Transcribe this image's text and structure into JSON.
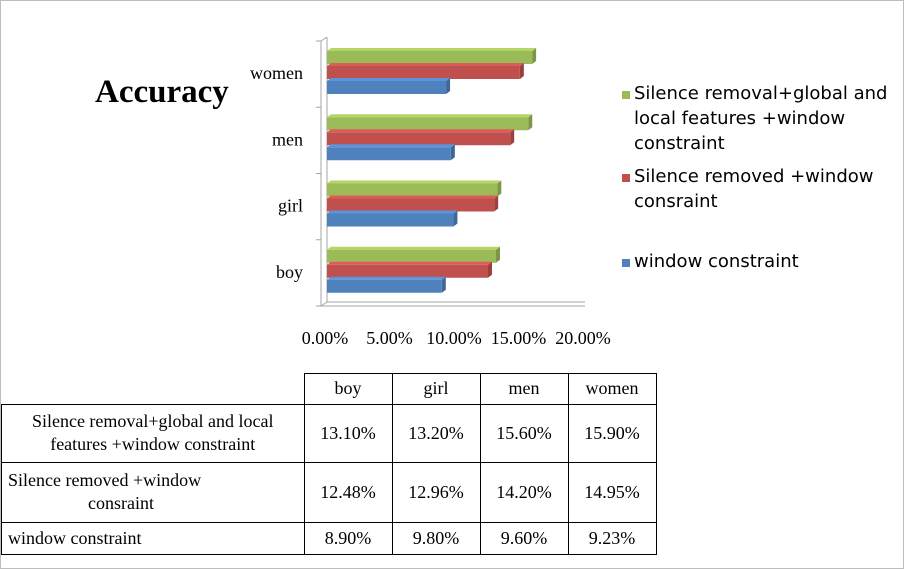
{
  "chart_data": {
    "type": "bar",
    "orientation": "horizontal",
    "title": "Accuracy",
    "categories": [
      "boy",
      "girl",
      "men",
      "women"
    ],
    "series": [
      {
        "name": "window constraint",
        "values": [
          8.9,
          9.8,
          9.6,
          9.23
        ],
        "color": "#4f81bd"
      },
      {
        "name": "Silence removed +window consraint",
        "values": [
          12.48,
          12.96,
          14.2,
          14.95
        ],
        "color": "#c0504d"
      },
      {
        "name": "Silence removal+global and local features +window constraint",
        "values": [
          13.1,
          13.2,
          15.6,
          15.9
        ],
        "color": "#9bbb59"
      }
    ],
    "xlim": [
      0,
      20
    ],
    "x_ticks": [
      "0.00%",
      "5.00%",
      "10.00%",
      "15.00%",
      "20.00%"
    ],
    "grid": false,
    "legend_position": "right",
    "legend_lines": [
      [
        "Silence removal+global and",
        "local features +window",
        "constraint"
      ],
      [
        "Silence removed +window",
        "consraint"
      ],
      [
        "window constraint"
      ]
    ]
  },
  "table": {
    "columns": [
      "boy",
      "girl",
      "men",
      "women"
    ],
    "rows": [
      {
        "label_lines": [
          "Silence removal+global and local",
          "features +window constraint"
        ],
        "values": [
          "13.10%",
          "13.20%",
          "15.60%",
          "15.90%"
        ]
      },
      {
        "label_lines": [
          "Silence removed +window",
          "consraint"
        ],
        "values": [
          "12.48%",
          "12.96%",
          "14.20%",
          "14.95%"
        ]
      },
      {
        "label_lines": [
          "window constraint"
        ],
        "values": [
          "8.90%",
          "9.80%",
          "9.60%",
          "9.23%"
        ]
      }
    ]
  }
}
